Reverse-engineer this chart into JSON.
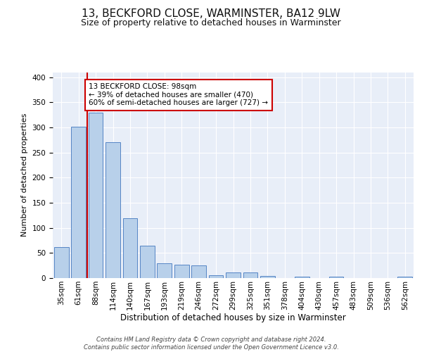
{
  "title1": "13, BECKFORD CLOSE, WARMINSTER, BA12 9LW",
  "title2": "Size of property relative to detached houses in Warminster",
  "xlabel": "Distribution of detached houses by size in Warminster",
  "ylabel": "Number of detached properties",
  "categories": [
    "35sqm",
    "61sqm",
    "88sqm",
    "114sqm",
    "140sqm",
    "167sqm",
    "193sqm",
    "219sqm",
    "246sqm",
    "272sqm",
    "299sqm",
    "325sqm",
    "351sqm",
    "378sqm",
    "404sqm",
    "430sqm",
    "457sqm",
    "483sqm",
    "509sqm",
    "536sqm",
    "562sqm"
  ],
  "values": [
    62,
    302,
    330,
    271,
    119,
    64,
    29,
    27,
    25,
    6,
    11,
    11,
    4,
    0,
    3,
    0,
    3,
    0,
    0,
    0,
    3
  ],
  "bar_color": "#b8d0ea",
  "bar_edge_color": "#5585c5",
  "red_line_x": 2,
  "annotation_text": "13 BECKFORD CLOSE: 98sqm\n← 39% of detached houses are smaller (470)\n60% of semi-detached houses are larger (727) →",
  "annotation_box_color": "#ffffff",
  "annotation_box_edge": "#cc0000",
  "background_color": "#e8eef8",
  "grid_color": "#ffffff",
  "footnote": "Contains HM Land Registry data © Crown copyright and database right 2024.\nContains public sector information licensed under the Open Government Licence v3.0.",
  "ylim": [
    0,
    410
  ],
  "title1_fontsize": 11,
  "title2_fontsize": 9,
  "ylabel_fontsize": 8,
  "xlabel_fontsize": 8.5,
  "tick_fontsize": 7.5,
  "annot_fontsize": 7.5
}
